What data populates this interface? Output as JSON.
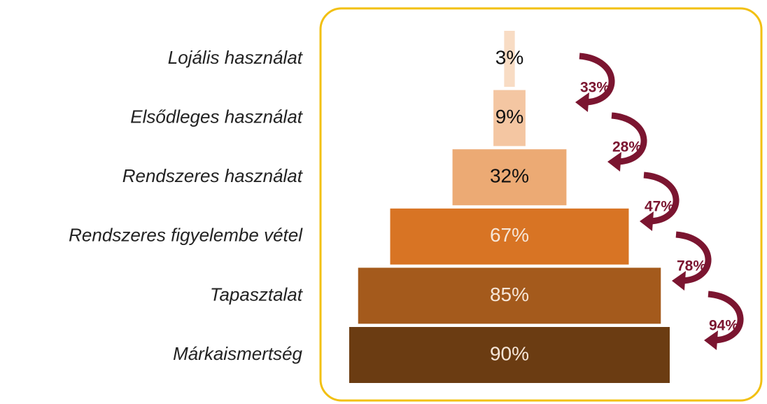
{
  "chart_data": {
    "type": "funnel",
    "categories": [
      "Lojális használat",
      "Elsődleges használat",
      "Rendszeres használat",
      "Rendszeres figyelembe vétel",
      "Tapasztalat",
      "Márkaismertség"
    ],
    "values": [
      3,
      9,
      32,
      67,
      85,
      90
    ],
    "value_labels": [
      "3%",
      "9%",
      "32%",
      "67%",
      "85%",
      "90%"
    ],
    "colors": [
      "#f8dcc4",
      "#f4c6a2",
      "#ecaa74",
      "#d87424",
      "#a45a1c",
      "#6b3c12"
    ],
    "conversions": {
      "values": [
        33,
        28,
        47,
        78,
        94
      ],
      "value_labels": [
        "33%",
        "28%",
        "47%",
        "78%",
        "94%"
      ],
      "color": "#7b1530"
    }
  }
}
